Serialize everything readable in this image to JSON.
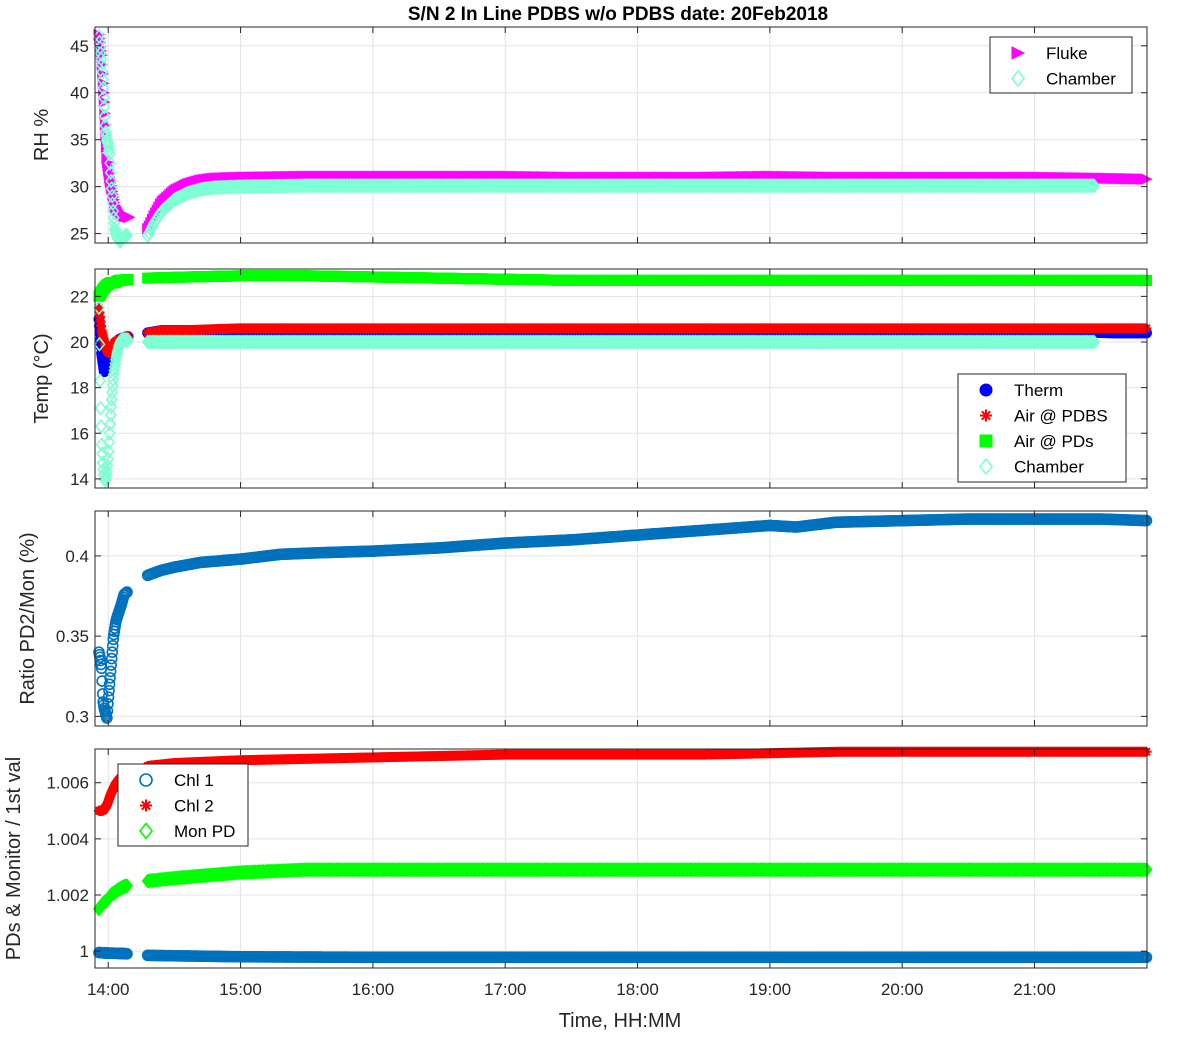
{
  "title": "S/N 2 In Line PDBS w/o PDBS date: 20Feb2018",
  "xlabel": "Time, HH:MM",
  "x_ticks": [
    "14:00",
    "15:00",
    "16:00",
    "17:00",
    "18:00",
    "19:00",
    "20:00",
    "21:00"
  ],
  "colors": {
    "fluke": "#ff00ff",
    "chamber": "#7fffd4",
    "therm": "#0000ff",
    "air_pdbs": "#ff0000",
    "air_pds": "#00ff00",
    "chl1": "#0072bd",
    "chl2": "#ff0000",
    "mon_pd": "#00ff00"
  },
  "chart_data": [
    {
      "type": "scatter",
      "ylabel": "RH %",
      "ylim": [
        24,
        47
      ],
      "y_ticks": [
        25,
        30,
        35,
        40,
        45
      ],
      "xlim_hours": [
        13.9,
        21.85
      ],
      "legend_position": "top-right",
      "grid": true,
      "series": [
        {
          "name": "Fluke",
          "marker": "triangle-right",
          "x_hours": [
            13.93,
            13.95,
            13.97,
            13.99,
            14.01,
            14.03,
            14.05,
            14.08,
            14.12,
            14.15,
            14.3,
            14.35,
            14.4,
            14.5,
            14.6,
            14.7,
            14.8,
            15.0,
            15.5,
            16.0,
            16.5,
            17.0,
            17.5,
            18.0,
            18.5,
            19.0,
            19.5,
            20.0,
            20.5,
            21.0,
            21.5,
            21.85
          ],
          "y": [
            46.2,
            44.0,
            39.0,
            33.0,
            31.0,
            29.5,
            28.0,
            27.2,
            26.9,
            26.8,
            25.5,
            27.0,
            28.3,
            29.6,
            30.3,
            30.7,
            30.9,
            31.0,
            31.1,
            31.1,
            31.1,
            31.1,
            31.0,
            31.0,
            31.0,
            31.1,
            31.0,
            31.0,
            31.0,
            31.0,
            30.9,
            30.8
          ]
        },
        {
          "name": "Chamber",
          "marker": "diamond",
          "x_hours": [
            13.93,
            13.95,
            13.96,
            13.97,
            13.98,
            13.99,
            14.0,
            14.01,
            14.02,
            14.03,
            14.04,
            14.05,
            14.07,
            14.09,
            14.11,
            14.13,
            14.3,
            14.35,
            14.4,
            14.5,
            14.6,
            14.7,
            14.8,
            15.0,
            15.5,
            16.0,
            16.5,
            17.0,
            17.5,
            18.0,
            18.5,
            19.0,
            19.5,
            20.0,
            20.5,
            21.0,
            21.45
          ],
          "y": [
            46.0,
            43.0,
            41.0,
            38.5,
            36.0,
            35.0,
            34.5,
            33.5,
            31.0,
            29.0,
            27.0,
            25.5,
            24.5,
            24.2,
            24.5,
            24.8,
            24.8,
            26.2,
            27.3,
            28.6,
            29.3,
            29.7,
            29.9,
            30.0,
            30.1,
            30.1,
            30.1,
            30.1,
            30.1,
            30.1,
            30.1,
            30.1,
            30.1,
            30.1,
            30.1,
            30.1,
            30.1
          ]
        }
      ]
    },
    {
      "type": "scatter",
      "ylabel": "Temp (°C)",
      "ylim": [
        13.6,
        23.2
      ],
      "y_ticks": [
        14,
        16,
        18,
        20,
        22
      ],
      "xlim_hours": [
        13.9,
        21.85
      ],
      "legend_position": "bottom-right",
      "grid": true,
      "series": [
        {
          "name": "Therm",
          "marker": "circle",
          "x_hours": [
            13.93,
            13.95,
            13.97,
            13.99,
            14.01,
            14.03,
            14.05,
            14.08,
            14.12,
            14.3,
            14.4,
            14.5,
            15.0,
            16.0,
            17.0,
            18.0,
            19.0,
            20.0,
            21.0,
            21.6,
            21.85
          ],
          "y": [
            21.0,
            19.5,
            18.7,
            19.0,
            19.4,
            19.7,
            19.9,
            20.1,
            20.2,
            20.4,
            20.5,
            20.5,
            20.5,
            20.5,
            20.5,
            20.5,
            20.5,
            20.5,
            20.5,
            20.4,
            20.4
          ]
        },
        {
          "name": "Air @ PDBS",
          "marker": "asterisk",
          "x_hours": [
            13.93,
            13.95,
            13.97,
            13.99,
            14.01,
            14.03,
            14.05,
            14.08,
            14.12,
            14.3,
            14.4,
            14.5,
            15.0,
            16.0,
            17.0,
            18.0,
            19.0,
            20.0,
            21.0,
            21.85
          ],
          "y": [
            21.5,
            20.5,
            20.0,
            19.6,
            19.5,
            19.8,
            20.0,
            20.1,
            20.2,
            20.4,
            20.5,
            20.5,
            20.6,
            20.6,
            20.6,
            20.6,
            20.6,
            20.6,
            20.6,
            20.6
          ]
        },
        {
          "name": "Air @ PDs",
          "marker": "square",
          "x_hours": [
            13.93,
            13.96,
            13.99,
            14.02,
            14.05,
            14.08,
            14.3,
            14.6,
            15.0,
            15.5,
            16.0,
            16.5,
            17.0,
            17.5,
            18.0,
            18.5,
            19.0,
            19.5,
            20.0,
            20.5,
            21.0,
            21.85
          ],
          "y": [
            22.0,
            22.3,
            22.5,
            22.6,
            22.6,
            22.7,
            22.8,
            22.85,
            22.9,
            22.9,
            22.85,
            22.8,
            22.75,
            22.7,
            22.7,
            22.7,
            22.7,
            22.7,
            22.7,
            22.7,
            22.7,
            22.7
          ]
        },
        {
          "name": "Chamber",
          "marker": "diamond",
          "x_hours": [
            13.93,
            13.94,
            13.95,
            13.96,
            13.97,
            13.98,
            13.99,
            14.0,
            14.01,
            14.02,
            14.03,
            14.04,
            14.06,
            14.08,
            14.1,
            14.12,
            14.3,
            14.5,
            15.0,
            16.0,
            17.0,
            18.0,
            19.0,
            20.0,
            21.0,
            21.45
          ],
          "y": [
            21.5,
            17.5,
            15.5,
            14.5,
            14.0,
            13.9,
            14.3,
            15.0,
            16.0,
            17.0,
            17.8,
            18.5,
            19.3,
            19.8,
            20.1,
            20.1,
            20.0,
            20.0,
            20.0,
            20.0,
            20.0,
            20.0,
            20.0,
            20.0,
            20.0,
            20.0
          ]
        }
      ]
    },
    {
      "type": "scatter",
      "ylabel": "Ratio PD2/Mon (%)",
      "ylim": [
        0.294,
        0.428
      ],
      "y_ticks": [
        0.3,
        0.35,
        0.4
      ],
      "xlim_hours": [
        13.9,
        21.85
      ],
      "grid": true,
      "series": [
        {
          "marker": "circle",
          "x_hours": [
            13.93,
            13.94,
            13.95,
            13.96,
            13.97,
            13.98,
            13.99,
            14.0,
            14.01,
            14.02,
            14.03,
            14.04,
            14.05,
            14.06,
            14.08,
            14.1,
            14.12,
            14.3,
            14.4,
            14.5,
            14.7,
            15.0,
            15.3,
            15.6,
            16.0,
            16.5,
            17.0,
            17.5,
            18.0,
            18.5,
            19.0,
            19.2,
            19.5,
            20.0,
            20.5,
            21.0,
            21.5,
            21.85
          ],
          "y": [
            0.34,
            0.336,
            0.33,
            0.31,
            0.305,
            0.302,
            0.299,
            0.31,
            0.32,
            0.33,
            0.34,
            0.35,
            0.355,
            0.36,
            0.365,
            0.37,
            0.376,
            0.388,
            0.391,
            0.393,
            0.396,
            0.398,
            0.401,
            0.402,
            0.403,
            0.405,
            0.408,
            0.41,
            0.413,
            0.416,
            0.419,
            0.418,
            0.421,
            0.422,
            0.423,
            0.423,
            0.423,
            0.422
          ]
        }
      ]
    },
    {
      "type": "scatter",
      "ylabel": "PDs & Monitor / 1st val",
      "ylim": [
        0.9994,
        1.0072
      ],
      "y_ticks": [
        1,
        1.002,
        1.004,
        1.006
      ],
      "y_tick_labels": [
        "1",
        "1.002",
        "1.004",
        "1.006"
      ],
      "xlim_hours": [
        13.9,
        21.85
      ],
      "legend_position": "top-left",
      "grid": true,
      "series": [
        {
          "name": "Chl 1",
          "marker": "circle",
          "x_hours": [
            13.93,
            14.0,
            14.1,
            14.3,
            15.0,
            16.0,
            17.0,
            18.0,
            19.0,
            20.0,
            21.0,
            21.85
          ],
          "y": [
            0.99995,
            0.99993,
            0.99992,
            0.99985,
            0.9998,
            0.99978,
            0.99978,
            0.99978,
            0.99978,
            0.99978,
            0.99978,
            0.99978
          ]
        },
        {
          "name": "Chl 2",
          "marker": "asterisk",
          "x_hours": [
            13.93,
            13.96,
            13.99,
            14.02,
            14.05,
            14.08,
            14.12,
            14.3,
            14.5,
            15.0,
            15.5,
            16.0,
            16.5,
            17.0,
            17.5,
            18.0,
            18.5,
            19.0,
            19.5,
            20.0,
            20.5,
            21.0,
            21.5,
            21.85
          ],
          "y": [
            1.005,
            1.005,
            1.0052,
            1.0056,
            1.0059,
            1.0061,
            1.0063,
            1.0066,
            1.0067,
            1.0068,
            1.00685,
            1.0069,
            1.00695,
            1.007,
            1.007,
            1.007,
            1.007,
            1.00705,
            1.0071,
            1.0071,
            1.0071,
            1.0071,
            1.0071,
            1.0071
          ]
        },
        {
          "name": "Mon PD",
          "marker": "diamond",
          "x_hours": [
            13.93,
            13.96,
            13.99,
            14.02,
            14.05,
            14.08,
            14.12,
            14.3,
            14.5,
            15.0,
            15.5,
            16.0,
            17.0,
            18.0,
            19.0,
            20.0,
            21.0,
            21.85
          ],
          "y": [
            1.0015,
            1.0017,
            1.0018,
            1.002,
            1.0021,
            1.0022,
            1.0023,
            1.0025,
            1.0026,
            1.0028,
            1.0029,
            1.0029,
            1.0029,
            1.0029,
            1.0029,
            1.0029,
            1.0029,
            1.0029
          ]
        }
      ]
    }
  ]
}
